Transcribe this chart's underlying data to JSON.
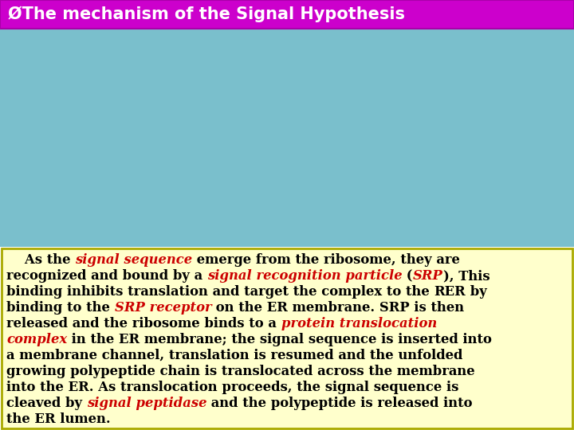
{
  "title": "ØThe mechanism of the Signal Hypothesis",
  "title_bg": "#CC00CC",
  "title_color": "#FFFFFF",
  "title_fontsize": 15,
  "text_box_bg": "#FFFFCC",
  "text_box_border": "#AAAA00",
  "body_fontsize": 11.8,
  "image_bg": "#7ABFCC",
  "paragraphs": [
    [
      {
        "text": "    As the ",
        "color": "#000000",
        "bold": true,
        "italic": false
      },
      {
        "text": "signal sequence",
        "color": "#CC0000",
        "bold": true,
        "italic": true
      },
      {
        "text": " emerge from the ribosome, they are",
        "color": "#000000",
        "bold": true,
        "italic": false
      }
    ],
    [
      {
        "text": "recognized and bound by a ",
        "color": "#000000",
        "bold": true,
        "italic": false
      },
      {
        "text": "signal recognition particle",
        "color": "#CC0000",
        "bold": true,
        "italic": true
      },
      {
        "text": " (",
        "color": "#000000",
        "bold": true,
        "italic": false
      },
      {
        "text": "SRP",
        "color": "#CC0000",
        "bold": true,
        "italic": true
      },
      {
        "text": "), This",
        "color": "#000000",
        "bold": true,
        "italic": false
      }
    ],
    [
      {
        "text": "binding inhibits translation and target the complex to the ",
        "color": "#000000",
        "bold": true,
        "italic": false
      },
      {
        "text": "RER",
        "color": "#000000",
        "bold": true,
        "italic": false
      },
      {
        "text": " by",
        "color": "#000000",
        "bold": true,
        "italic": false
      }
    ],
    [
      {
        "text": "binding to the ",
        "color": "#000000",
        "bold": true,
        "italic": false
      },
      {
        "text": "SRP receptor",
        "color": "#CC0000",
        "bold": true,
        "italic": true
      },
      {
        "text": " on the ER membrane. SRP is then",
        "color": "#000000",
        "bold": true,
        "italic": false
      }
    ],
    [
      {
        "text": "released and the ribosome binds to a ",
        "color": "#000000",
        "bold": true,
        "italic": false
      },
      {
        "text": "protein translocation",
        "color": "#CC0000",
        "bold": true,
        "italic": true
      }
    ],
    [
      {
        "text": "complex",
        "color": "#CC0000",
        "bold": true,
        "italic": true
      },
      {
        "text": " in the ER membrane; the signal sequence is inserted into",
        "color": "#000000",
        "bold": true,
        "italic": false
      }
    ],
    [
      {
        "text": "a membrane channel, translation is resumed and the unfolded",
        "color": "#000000",
        "bold": true,
        "italic": false
      }
    ],
    [
      {
        "text": "growing polypeptide chain is translocated across the membrane",
        "color": "#000000",
        "bold": true,
        "italic": false
      }
    ],
    [
      {
        "text": "into the ER. As translocation proceeds, the signal sequence is",
        "color": "#000000",
        "bold": true,
        "italic": false
      }
    ],
    [
      {
        "text": "cleaved by ",
        "color": "#000000",
        "bold": true,
        "italic": false
      },
      {
        "text": "signal peptidase",
        "color": "#CC0000",
        "bold": true,
        "italic": true
      },
      {
        "text": " and the polypeptide is released into",
        "color": "#000000",
        "bold": true,
        "italic": false
      }
    ],
    [
      {
        "text": "the ER lumen.",
        "color": "#000000",
        "bold": true,
        "italic": false
      }
    ]
  ]
}
